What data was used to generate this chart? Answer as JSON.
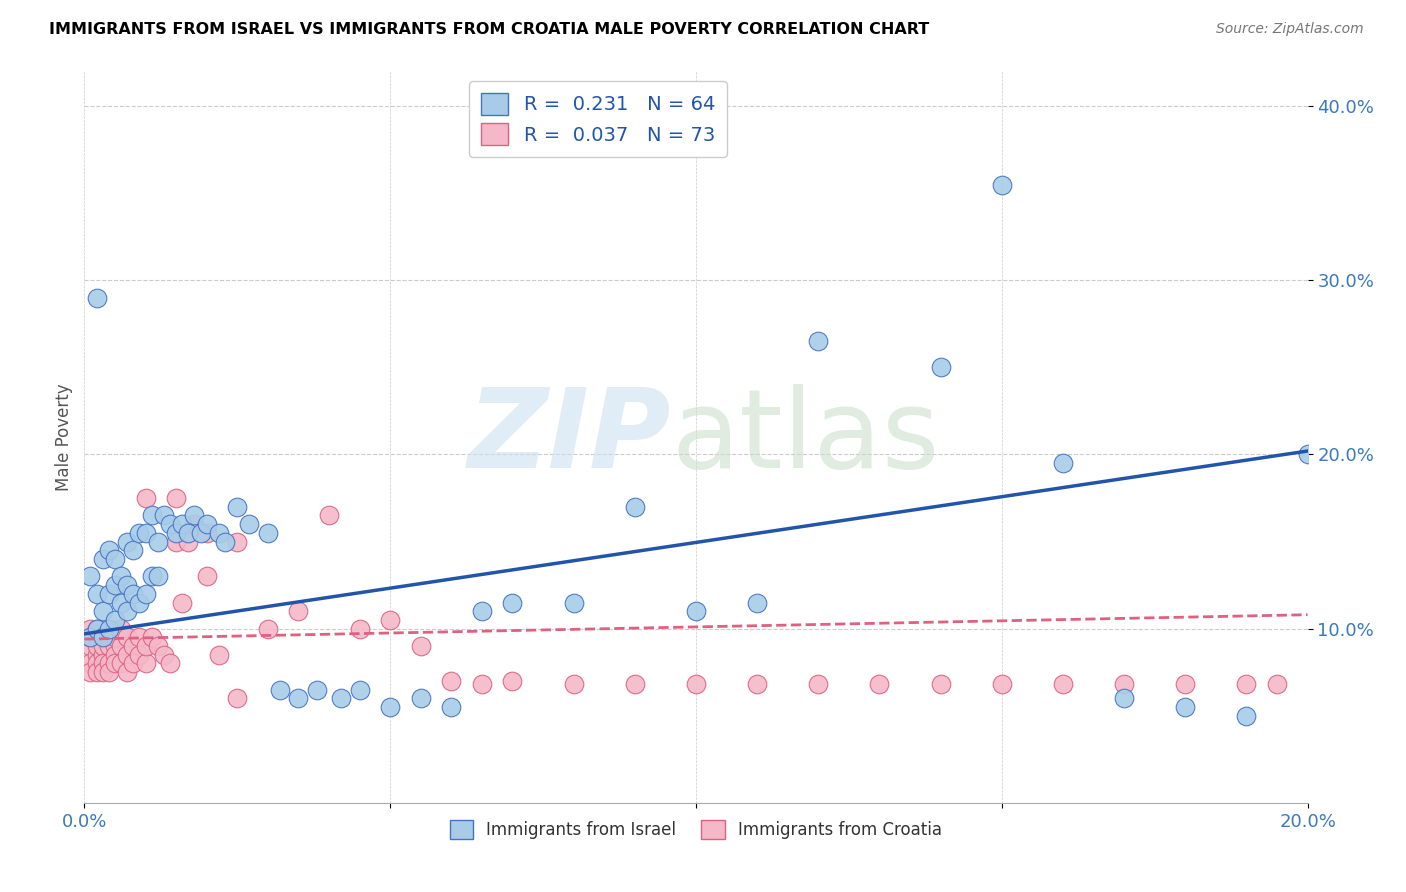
{
  "title": "IMMIGRANTS FROM ISRAEL VS IMMIGRANTS FROM CROATIA MALE POVERTY CORRELATION CHART",
  "source": "Source: ZipAtlas.com",
  "ylabel": "Male Poverty",
  "yticks": [
    "10.0%",
    "20.0%",
    "30.0%",
    "40.0%"
  ],
  "ytick_vals": [
    0.1,
    0.2,
    0.3,
    0.4
  ],
  "xlim": [
    0.0,
    0.2
  ],
  "ylim": [
    0.0,
    0.42
  ],
  "legend_israel_label": "R =  0.231   N = 64",
  "legend_croatia_label": "R =  0.037   N = 73",
  "israel_color": "#a8cce8",
  "croatia_color": "#f4b8c8",
  "israel_edge_color": "#4472c4",
  "croatia_edge_color": "#e06080",
  "israel_line_color": "#2255aa",
  "croatia_line_color": "#e06080",
  "israel_scatter_x": [
    0.001,
    0.001,
    0.002,
    0.002,
    0.002,
    0.003,
    0.003,
    0.003,
    0.004,
    0.004,
    0.004,
    0.005,
    0.005,
    0.005,
    0.006,
    0.006,
    0.007,
    0.007,
    0.007,
    0.008,
    0.008,
    0.009,
    0.009,
    0.01,
    0.01,
    0.011,
    0.011,
    0.012,
    0.012,
    0.013,
    0.014,
    0.015,
    0.016,
    0.017,
    0.018,
    0.019,
    0.02,
    0.022,
    0.023,
    0.025,
    0.027,
    0.03,
    0.032,
    0.035,
    0.038,
    0.042,
    0.045,
    0.05,
    0.055,
    0.06,
    0.065,
    0.07,
    0.08,
    0.09,
    0.1,
    0.11,
    0.12,
    0.14,
    0.15,
    0.16,
    0.17,
    0.18,
    0.19,
    0.2
  ],
  "israel_scatter_y": [
    0.095,
    0.13,
    0.1,
    0.12,
    0.29,
    0.095,
    0.11,
    0.14,
    0.1,
    0.12,
    0.145,
    0.105,
    0.125,
    0.14,
    0.115,
    0.13,
    0.11,
    0.125,
    0.15,
    0.12,
    0.145,
    0.115,
    0.155,
    0.12,
    0.155,
    0.13,
    0.165,
    0.13,
    0.15,
    0.165,
    0.16,
    0.155,
    0.16,
    0.155,
    0.165,
    0.155,
    0.16,
    0.155,
    0.15,
    0.17,
    0.16,
    0.155,
    0.065,
    0.06,
    0.065,
    0.06,
    0.065,
    0.055,
    0.06,
    0.055,
    0.11,
    0.115,
    0.115,
    0.17,
    0.11,
    0.115,
    0.265,
    0.25,
    0.355,
    0.195,
    0.06,
    0.055,
    0.05,
    0.2
  ],
  "croatia_scatter_x": [
    0.001,
    0.001,
    0.001,
    0.001,
    0.001,
    0.002,
    0.002,
    0.002,
    0.002,
    0.002,
    0.002,
    0.003,
    0.003,
    0.003,
    0.003,
    0.003,
    0.004,
    0.004,
    0.004,
    0.004,
    0.005,
    0.005,
    0.005,
    0.005,
    0.006,
    0.006,
    0.006,
    0.007,
    0.007,
    0.007,
    0.008,
    0.008,
    0.009,
    0.009,
    0.01,
    0.01,
    0.011,
    0.012,
    0.013,
    0.014,
    0.015,
    0.016,
    0.017,
    0.018,
    0.02,
    0.022,
    0.025,
    0.03,
    0.035,
    0.04,
    0.045,
    0.05,
    0.055,
    0.06,
    0.065,
    0.07,
    0.08,
    0.09,
    0.1,
    0.11,
    0.12,
    0.13,
    0.14,
    0.15,
    0.16,
    0.17,
    0.18,
    0.19,
    0.195,
    0.01,
    0.015,
    0.02,
    0.025
  ],
  "croatia_scatter_y": [
    0.09,
    0.095,
    0.1,
    0.08,
    0.075,
    0.085,
    0.095,
    0.1,
    0.09,
    0.08,
    0.075,
    0.085,
    0.095,
    0.09,
    0.08,
    0.075,
    0.09,
    0.095,
    0.08,
    0.075,
    0.09,
    0.085,
    0.095,
    0.08,
    0.1,
    0.09,
    0.08,
    0.085,
    0.095,
    0.075,
    0.09,
    0.08,
    0.095,
    0.085,
    0.08,
    0.09,
    0.095,
    0.09,
    0.085,
    0.08,
    0.15,
    0.115,
    0.15,
    0.16,
    0.13,
    0.085,
    0.15,
    0.1,
    0.11,
    0.165,
    0.1,
    0.105,
    0.09,
    0.07,
    0.068,
    0.07,
    0.068,
    0.068,
    0.068,
    0.068,
    0.068,
    0.068,
    0.068,
    0.068,
    0.068,
    0.068,
    0.068,
    0.068,
    0.068,
    0.175,
    0.175,
    0.155,
    0.06
  ],
  "israel_trend_x": [
    0.0,
    0.2
  ],
  "israel_trend_y": [
    0.097,
    0.202
  ],
  "croatia_trend_x": [
    0.0,
    0.2
  ],
  "croatia_trend_y": [
    0.094,
    0.108
  ]
}
